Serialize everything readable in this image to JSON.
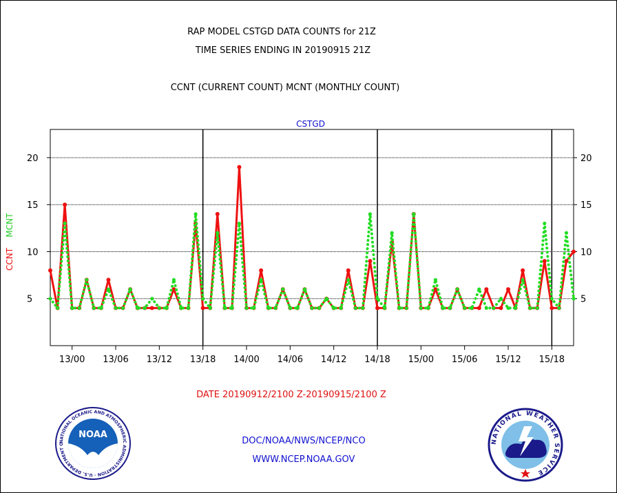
{
  "header": {
    "line1": "RAP MODEL CSTGD DATA COUNTS for 21Z",
    "line2": "TIME SERIES ENDING IN 20190915 21Z",
    "line3": "CCNT (CURRENT COUNT) MCNT (MONTHLY COUNT)"
  },
  "footer": {
    "date_range": "DATE 20190912/2100 Z-20190915/2100 Z",
    "org": "DOC/NOAA/NWS/NCEP/NCO",
    "url": "WWW.NCEP.NOAA.GOV"
  },
  "logos": {
    "left_text": "NOAA",
    "left_ring": "NATIONAL OCEANIC AND ATMOSPHERIC ADMINISTRATION · U.S. DEPARTMENT OF COMMERCE",
    "right_ring": "NATIONAL WEATHER SERVICE"
  },
  "colors": {
    "ccnt": "#ee1111",
    "mcnt": "#22dd22",
    "text": "#000000",
    "blue": "#1010d0"
  },
  "chart_data": {
    "type": "line",
    "panel_label": "CSTGD",
    "ylabel_ccnt": "CCNT",
    "ylabel_mcnt": "MCNT",
    "x_tick_labels": [
      "13/00",
      "13/06",
      "13/12",
      "13/18",
      "14/00",
      "14/06",
      "14/12",
      "14/18",
      "15/00",
      "15/06",
      "15/12",
      "15/18"
    ],
    "x_ticks_hours_since_start": [
      3,
      9,
      15,
      21,
      27,
      33,
      39,
      45,
      51,
      57,
      63,
      69
    ],
    "day_boundaries_hours": [
      21,
      45,
      69
    ],
    "y_ticks": [
      5,
      10,
      15,
      20
    ],
    "ylim": [
      0,
      23
    ],
    "grid": true,
    "x_start": "2019-09-12 21Z",
    "x_end": "2019-09-15 21Z",
    "series": [
      {
        "name": "CCNT",
        "color": "#ee1111",
        "values": [
          8,
          4,
          15,
          4,
          4,
          7,
          4,
          4,
          7,
          4,
          4,
          6,
          4,
          4,
          4,
          4,
          4,
          6,
          4,
          4,
          13,
          4,
          4,
          14,
          4,
          4,
          19,
          4,
          4,
          8,
          4,
          4,
          6,
          4,
          4,
          6,
          4,
          4,
          5,
          4,
          4,
          8,
          4,
          4,
          9,
          4,
          4,
          11,
          4,
          4,
          14,
          4,
          4,
          6,
          4,
          4,
          6,
          4,
          4,
          4,
          6,
          4,
          4,
          6,
          4,
          8,
          4,
          4,
          9,
          4,
          4,
          9,
          10
        ]
      },
      {
        "name": "MCNT",
        "color": "#22dd22",
        "values": [
          5,
          4,
          13,
          4,
          4,
          7,
          4,
          4,
          6,
          4,
          4,
          6,
          4,
          4,
          5,
          4,
          4,
          7,
          4,
          4,
          14,
          5,
          4,
          12,
          4,
          4,
          13,
          4,
          4,
          7,
          4,
          4,
          6,
          4,
          4,
          6,
          4,
          4,
          5,
          4,
          4,
          7,
          4,
          4,
          14,
          5,
          4,
          12,
          4,
          4,
          14,
          4,
          4,
          7,
          4,
          4,
          6,
          4,
          4,
          6,
          4,
          4,
          5,
          4,
          4,
          7,
          4,
          4,
          13,
          5,
          4,
          12,
          5
        ]
      }
    ]
  }
}
